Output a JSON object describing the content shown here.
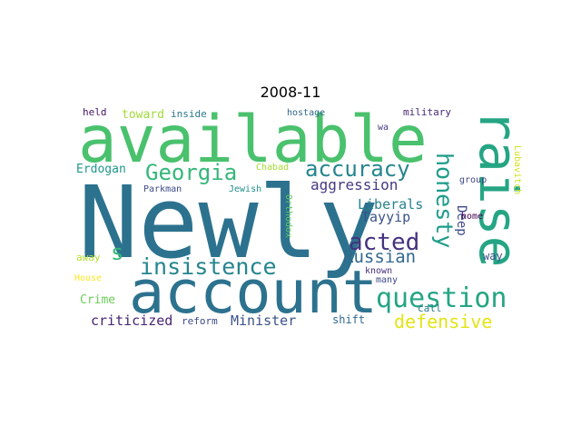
{
  "title": "2008-11",
  "words": [
    {
      "text": "Newly",
      "color": "#2c728e"
    },
    {
      "text": "available",
      "color": "#4ac16d"
    },
    {
      "text": "account",
      "color": "#2c728e"
    },
    {
      "text": "raise",
      "color": "#25a584"
    },
    {
      "text": "question",
      "color": "#25a584"
    },
    {
      "text": "insistence",
      "color": "#25858e"
    },
    {
      "text": "Georgia",
      "color": "#35b779"
    },
    {
      "text": "accuracy",
      "color": "#25858e"
    },
    {
      "text": "honesty",
      "color": "#1e9c89"
    },
    {
      "text": "acted",
      "color": "#46327e"
    },
    {
      "text": "defensive",
      "color": "#e2e418"
    },
    {
      "text": "s",
      "color": "#35b779"
    },
    {
      "text": "Russian",
      "color": "#31688e"
    },
    {
      "text": "aggression",
      "color": "#443983"
    },
    {
      "text": "Liberals",
      "color": "#26828e"
    },
    {
      "text": "Tayyip",
      "color": "#3b528b"
    },
    {
      "text": "Deep",
      "color": "#3e4989"
    },
    {
      "text": "criticized",
      "color": "#482475"
    },
    {
      "text": "Minister",
      "color": "#3b528b"
    },
    {
      "text": "Erdogan",
      "color": "#1f988b"
    },
    {
      "text": "Crime",
      "color": "#6ccd5a"
    },
    {
      "text": "toward",
      "color": "#a0da39"
    },
    {
      "text": "held",
      "color": "#471365"
    },
    {
      "text": "inside",
      "color": "#2a788e"
    },
    {
      "text": "hostage",
      "color": "#31688e"
    },
    {
      "text": "military",
      "color": "#482878"
    },
    {
      "text": "wa",
      "color": "#433e85"
    },
    {
      "text": "Chabad",
      "color": "#a5db36"
    },
    {
      "text": "Parkman",
      "color": "#3e4a89"
    },
    {
      "text": "Jewish",
      "color": "#228d8d"
    },
    {
      "text": "Orthodox",
      "color": "#5ec962"
    },
    {
      "text": "group",
      "color": "#3f4788"
    },
    {
      "text": "Lubavitch",
      "color": "#d0e11c"
    },
    {
      "text": "home",
      "color": "#440154"
    },
    {
      "text": "way",
      "color": "#3b528b"
    },
    {
      "text": "away",
      "color": "#b5de2b"
    },
    {
      "text": "House",
      "color": "#fde725"
    },
    {
      "text": "known",
      "color": "#46327e"
    },
    {
      "text": "many",
      "color": "#3e4989"
    },
    {
      "text": "call",
      "color": "#2a788e"
    },
    {
      "text": "shift",
      "color": "#31688e"
    },
    {
      "text": "reform",
      "color": "#3e4a89"
    }
  ]
}
